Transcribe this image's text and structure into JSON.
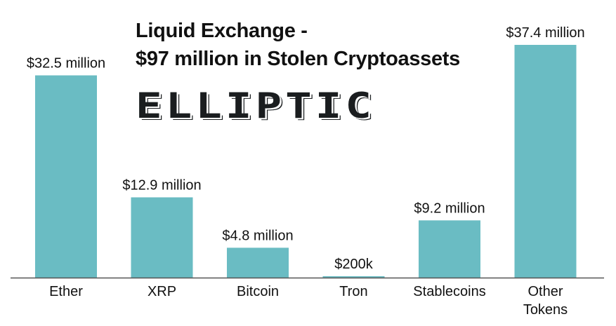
{
  "title_line1": "Liquid Exchange -",
  "title_line2": "$97 million in Stolen Cryptoassets",
  "logo_text": "ELLIPTIC",
  "chart_data": {
    "type": "bar",
    "title": "Liquid Exchange - $97 million in Stolen Cryptoassets",
    "xlabel": "",
    "ylabel": "",
    "categories": [
      "Ether",
      "XRP",
      "Bitcoin",
      "Tron",
      "Stablecoins",
      "Other Tokens"
    ],
    "values": [
      32.5,
      12.9,
      4.8,
      0.2,
      9.2,
      37.4
    ],
    "data_labels": [
      "$32.5 million",
      "$12.9 million",
      "$4.8 million",
      "$200k",
      "$9.2 million",
      "$37.4 million"
    ],
    "unit": "USD millions",
    "ylim": [
      0,
      37.4
    ],
    "grid": false,
    "color": "#6abcc3"
  }
}
